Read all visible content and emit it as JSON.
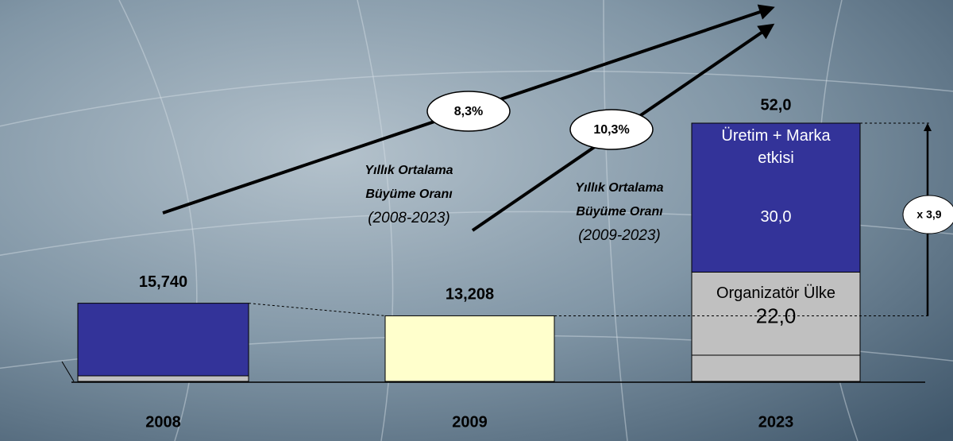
{
  "chart_data": {
    "type": "bar",
    "categories": [
      "2008",
      "2009",
      "2023"
    ],
    "values": [
      15.74,
      13.208,
      null
    ],
    "value_labels": [
      "15,740",
      "13,208",
      null
    ],
    "colors": [
      "#333399",
      "#ffffcc",
      null
    ],
    "segments": [
      {
        "name": "Organizatör Ülke",
        "color": "#c0c0c0",
        "value": 22.0,
        "value_label": "22,0"
      },
      {
        "name": "Üretim + Marka etkisi",
        "color": "#333399",
        "value": 30.0,
        "value_label": "30,0"
      }
    ],
    "total_label": "52,0",
    "growth": [
      {
        "rate": "8,3%",
        "lines": [
          "Yıllık Ortalama",
          "Büyüme Oranı",
          "(2008-2023)"
        ]
      },
      {
        "rate": "10,3%",
        "lines": [
          "Yıllık Ortalama",
          "Büyüme Oranı",
          "(2009-2023)"
        ]
      }
    ],
    "multiplier": "x 3,9"
  }
}
